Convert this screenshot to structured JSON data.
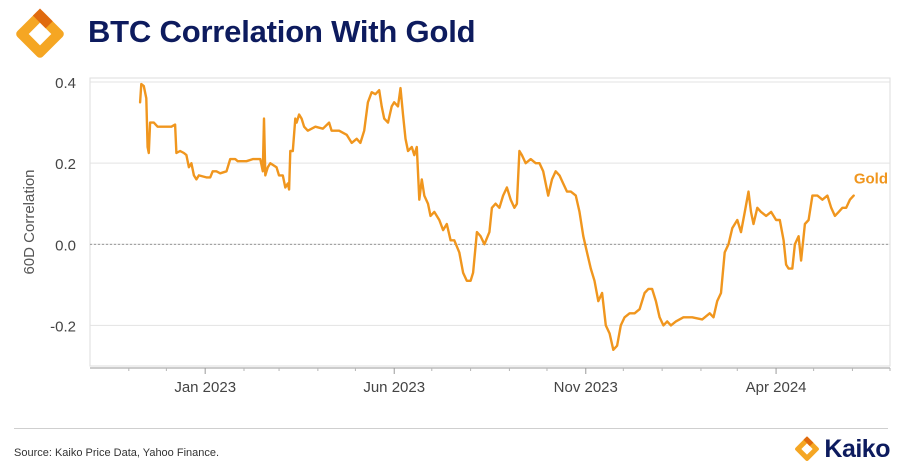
{
  "header": {
    "title": "BTC Correlation With Gold"
  },
  "footer": {
    "source": "Source: Kaiko Price Data, Yahoo Finance.",
    "brand": "Kaiko"
  },
  "colors": {
    "series": "#f0961e",
    "title": "#0d1b5e",
    "logo_orange": "#f5a623",
    "logo_dark_orange": "#e06a0e"
  },
  "icons": {
    "header_logo": "kaiko-logo-icon",
    "footer_logo": "kaiko-logo-icon"
  },
  "chart_data": {
    "type": "line",
    "title": "BTC Correlation With Gold",
    "xlabel": "",
    "ylabel": "60D Correlation",
    "xlim": [
      "2022-10-01",
      "2024-07-01"
    ],
    "ylim": [
      -0.3,
      0.41
    ],
    "yticks": [
      -0.2,
      0.0,
      0.2,
      0.4
    ],
    "ytick_labels": [
      "-0.2",
      "0.0",
      "0.2",
      "0.4"
    ],
    "xticks": [
      "2023-01-01",
      "2023-06-01",
      "2023-11-01",
      "2024-04-01"
    ],
    "xtick_labels": [
      "Jan 2023",
      "Jun 2023",
      "Nov 2023",
      "Apr 2024"
    ],
    "reference_line": {
      "y": 0.0,
      "style": "dotted"
    },
    "grid": true,
    "legend": "inline label at end of line",
    "series": [
      {
        "name": "Gold",
        "color": "#f0961e",
        "points": [
          [
            "2022-11-10",
            0.35
          ],
          [
            "2022-11-11",
            0.395
          ],
          [
            "2022-11-13",
            0.39
          ],
          [
            "2022-11-15",
            0.36
          ],
          [
            "2022-11-16",
            0.24
          ],
          [
            "2022-11-17",
            0.225
          ],
          [
            "2022-11-18",
            0.3
          ],
          [
            "2022-11-21",
            0.3
          ],
          [
            "2022-11-24",
            0.29
          ],
          [
            "2022-12-05",
            0.29
          ],
          [
            "2022-12-08",
            0.295
          ],
          [
            "2022-12-09",
            0.225
          ],
          [
            "2022-12-12",
            0.23
          ],
          [
            "2022-12-15",
            0.225
          ],
          [
            "2022-12-17",
            0.22
          ],
          [
            "2022-12-19",
            0.19
          ],
          [
            "2022-12-21",
            0.2
          ],
          [
            "2022-12-23",
            0.17
          ],
          [
            "2022-12-25",
            0.16
          ],
          [
            "2022-12-27",
            0.17
          ],
          [
            "2023-01-02",
            0.165
          ],
          [
            "2023-01-05",
            0.165
          ],
          [
            "2023-01-07",
            0.18
          ],
          [
            "2023-01-10",
            0.18
          ],
          [
            "2023-01-13",
            0.175
          ],
          [
            "2023-01-18",
            0.18
          ],
          [
            "2023-01-21",
            0.21
          ],
          [
            "2023-01-25",
            0.21
          ],
          [
            "2023-01-27",
            0.205
          ],
          [
            "2023-02-03",
            0.205
          ],
          [
            "2023-02-08",
            0.21
          ],
          [
            "2023-02-14",
            0.21
          ],
          [
            "2023-02-16",
            0.18
          ],
          [
            "2023-02-17",
            0.31
          ],
          [
            "2023-02-18",
            0.17
          ],
          [
            "2023-02-20",
            0.19
          ],
          [
            "2023-02-22",
            0.2
          ],
          [
            "2023-02-27",
            0.19
          ],
          [
            "2023-03-01",
            0.17
          ],
          [
            "2023-03-04",
            0.17
          ],
          [
            "2023-03-06",
            0.14
          ],
          [
            "2023-03-08",
            0.15
          ],
          [
            "2023-03-09",
            0.135
          ],
          [
            "2023-03-10",
            0.23
          ],
          [
            "2023-03-12",
            0.23
          ],
          [
            "2023-03-14",
            0.31
          ],
          [
            "2023-03-15",
            0.3
          ],
          [
            "2023-03-17",
            0.32
          ],
          [
            "2023-03-19",
            0.31
          ],
          [
            "2023-03-21",
            0.29
          ],
          [
            "2023-03-24",
            0.28
          ],
          [
            "2023-03-30",
            0.29
          ],
          [
            "2023-04-05",
            0.285
          ],
          [
            "2023-04-10",
            0.3
          ],
          [
            "2023-04-12",
            0.28
          ],
          [
            "2023-04-18",
            0.28
          ],
          [
            "2023-04-24",
            0.27
          ],
          [
            "2023-04-28",
            0.25
          ],
          [
            "2023-05-02",
            0.26
          ],
          [
            "2023-05-05",
            0.25
          ],
          [
            "2023-05-08",
            0.28
          ],
          [
            "2023-05-11",
            0.35
          ],
          [
            "2023-05-14",
            0.375
          ],
          [
            "2023-05-17",
            0.37
          ],
          [
            "2023-05-20",
            0.38
          ],
          [
            "2023-05-22",
            0.34
          ],
          [
            "2023-05-24",
            0.31
          ],
          [
            "2023-05-27",
            0.3
          ],
          [
            "2023-05-30",
            0.34
          ],
          [
            "2023-06-01",
            0.35
          ],
          [
            "2023-06-04",
            0.34
          ],
          [
            "2023-06-06",
            0.385
          ],
          [
            "2023-06-08",
            0.32
          ],
          [
            "2023-06-10",
            0.26
          ],
          [
            "2023-06-12",
            0.23
          ],
          [
            "2023-06-15",
            0.24
          ],
          [
            "2023-06-17",
            0.22
          ],
          [
            "2023-06-19",
            0.24
          ],
          [
            "2023-06-21",
            0.11
          ],
          [
            "2023-06-23",
            0.16
          ],
          [
            "2023-06-25",
            0.12
          ],
          [
            "2023-06-28",
            0.1
          ],
          [
            "2023-06-30",
            0.07
          ],
          [
            "2023-07-03",
            0.08
          ],
          [
            "2023-07-07",
            0.06
          ],
          [
            "2023-07-10",
            0.035
          ],
          [
            "2023-07-13",
            0.05
          ],
          [
            "2023-07-16",
            0.01
          ],
          [
            "2023-07-19",
            0.01
          ],
          [
            "2023-07-23",
            -0.02
          ],
          [
            "2023-07-26",
            -0.07
          ],
          [
            "2023-07-29",
            -0.09
          ],
          [
            "2023-08-01",
            -0.09
          ],
          [
            "2023-08-03",
            -0.07
          ],
          [
            "2023-08-06",
            0.03
          ],
          [
            "2023-08-09",
            0.02
          ],
          [
            "2023-08-12",
            0.0
          ],
          [
            "2023-08-16",
            0.03
          ],
          [
            "2023-08-18",
            0.09
          ],
          [
            "2023-08-21",
            0.1
          ],
          [
            "2023-08-24",
            0.09
          ],
          [
            "2023-08-27",
            0.12
          ],
          [
            "2023-08-30",
            0.14
          ],
          [
            "2023-09-02",
            0.11
          ],
          [
            "2023-09-05",
            0.09
          ],
          [
            "2023-09-07",
            0.1
          ],
          [
            "2023-09-09",
            0.23
          ],
          [
            "2023-09-11",
            0.22
          ],
          [
            "2023-09-14",
            0.2
          ],
          [
            "2023-09-18",
            0.21
          ],
          [
            "2023-09-22",
            0.2
          ],
          [
            "2023-09-25",
            0.2
          ],
          [
            "2023-09-28",
            0.18
          ],
          [
            "2023-09-30",
            0.15
          ],
          [
            "2023-10-02",
            0.12
          ],
          [
            "2023-10-05",
            0.16
          ],
          [
            "2023-10-08",
            0.18
          ],
          [
            "2023-10-11",
            0.17
          ],
          [
            "2023-10-14",
            0.15
          ],
          [
            "2023-10-17",
            0.13
          ],
          [
            "2023-10-20",
            0.13
          ],
          [
            "2023-10-24",
            0.12
          ],
          [
            "2023-10-27",
            0.08
          ],
          [
            "2023-10-30",
            0.02
          ],
          [
            "2023-11-02",
            -0.02
          ],
          [
            "2023-11-05",
            -0.06
          ],
          [
            "2023-11-08",
            -0.09
          ],
          [
            "2023-11-11",
            -0.14
          ],
          [
            "2023-11-14",
            -0.12
          ],
          [
            "2023-11-17",
            -0.2
          ],
          [
            "2023-11-20",
            -0.22
          ],
          [
            "2023-11-23",
            -0.26
          ],
          [
            "2023-11-26",
            -0.25
          ],
          [
            "2023-11-29",
            -0.2
          ],
          [
            "2023-12-02",
            -0.18
          ],
          [
            "2023-12-06",
            -0.17
          ],
          [
            "2023-12-10",
            -0.17
          ],
          [
            "2023-12-14",
            -0.16
          ],
          [
            "2023-12-18",
            -0.12
          ],
          [
            "2023-12-21",
            -0.11
          ],
          [
            "2023-12-24",
            -0.11
          ],
          [
            "2023-12-27",
            -0.14
          ],
          [
            "2023-12-30",
            -0.18
          ],
          [
            "2024-01-02",
            -0.2
          ],
          [
            "2024-01-05",
            -0.19
          ],
          [
            "2024-01-08",
            -0.2
          ],
          [
            "2024-01-12",
            -0.19
          ],
          [
            "2024-01-18",
            -0.18
          ],
          [
            "2024-01-25",
            -0.18
          ],
          [
            "2024-02-02",
            -0.185
          ],
          [
            "2024-02-08",
            -0.17
          ],
          [
            "2024-02-11",
            -0.18
          ],
          [
            "2024-02-14",
            -0.14
          ],
          [
            "2024-02-17",
            -0.12
          ],
          [
            "2024-02-20",
            -0.02
          ],
          [
            "2024-02-23",
            0.0
          ],
          [
            "2024-02-26",
            0.04
          ],
          [
            "2024-03-01",
            0.06
          ],
          [
            "2024-03-04",
            0.03
          ],
          [
            "2024-03-07",
            0.08
          ],
          [
            "2024-03-10",
            0.13
          ],
          [
            "2024-03-12",
            0.08
          ],
          [
            "2024-03-14",
            0.05
          ],
          [
            "2024-03-17",
            0.09
          ],
          [
            "2024-03-20",
            0.08
          ],
          [
            "2024-03-24",
            0.07
          ],
          [
            "2024-03-28",
            0.08
          ],
          [
            "2024-04-01",
            0.06
          ],
          [
            "2024-04-04",
            0.06
          ],
          [
            "2024-04-07",
            0.01
          ],
          [
            "2024-04-09",
            -0.05
          ],
          [
            "2024-04-11",
            -0.06
          ],
          [
            "2024-04-14",
            -0.06
          ],
          [
            "2024-04-16",
            0.0
          ],
          [
            "2024-04-19",
            0.02
          ],
          [
            "2024-04-21",
            -0.04
          ],
          [
            "2024-04-24",
            0.05
          ],
          [
            "2024-04-27",
            0.06
          ],
          [
            "2024-04-30",
            0.12
          ],
          [
            "2024-05-04",
            0.12
          ],
          [
            "2024-05-08",
            0.11
          ],
          [
            "2024-05-12",
            0.12
          ],
          [
            "2024-05-15",
            0.09
          ],
          [
            "2024-05-18",
            0.07
          ],
          [
            "2024-05-21",
            0.08
          ],
          [
            "2024-05-24",
            0.09
          ],
          [
            "2024-05-27",
            0.09
          ],
          [
            "2024-05-30",
            0.11
          ],
          [
            "2024-06-02",
            0.12
          ]
        ]
      }
    ]
  }
}
